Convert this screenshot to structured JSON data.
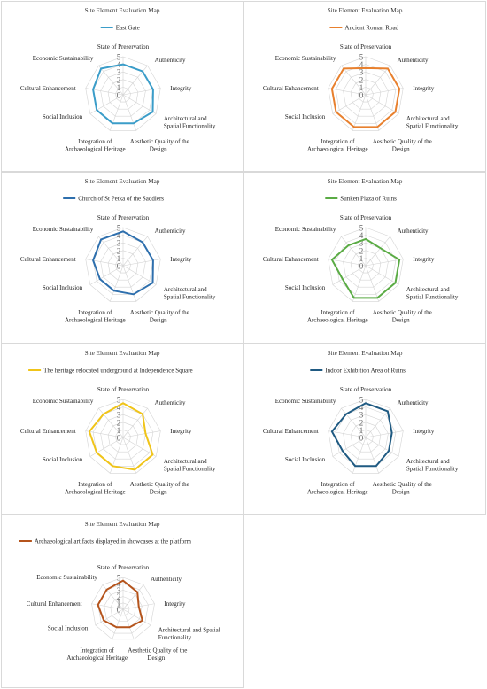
{
  "figure_title": "Site Element Evaluation Map",
  "axes": [
    "State of Preservation",
    "Authenticity",
    "Integrity",
    "Architectural and Spatial Functionality",
    "Aesthetic Quality of the Design",
    "Integration of Archaeological Heritage",
    "Social Inclusion",
    "Cultural Enhancement",
    "Economic Sustainability"
  ],
  "chart_data": [
    {
      "type": "radar",
      "title": "Site Element Evaluation Map",
      "axes": [
        "State of Preservation",
        "Authenticity",
        "Integrity",
        "Architectural and Spatial Functionality",
        "Aesthetic Quality of the Design",
        "Integration of Archaeological Heritage",
        "Social Inclusion",
        "Cultural Enhancement",
        "Economic Sustainability"
      ],
      "rlim": [
        0,
        5
      ],
      "ticks": [
        "0",
        "1",
        "2",
        "3",
        "4",
        "5"
      ],
      "grid": true,
      "legend": "top",
      "series": [
        {
          "name": "East Gate",
          "color": "#3b9dc9",
          "values": [
            4,
            4,
            4,
            4.5,
            4,
            4,
            4,
            4,
            4.5
          ]
        }
      ]
    },
    {
      "type": "radar",
      "title": "Site Element Evaluation Map",
      "axes": [
        "State of Preservation",
        "Authenticity",
        "Integrity",
        "Architectural and Spatial Functionality",
        "Aesthetic Quality of the Design",
        "Integration of Archaeological Heritage",
        "Social Inclusion",
        "Cultural Enhancement",
        "Economic Sustainability"
      ],
      "rlim": [
        0,
        5
      ],
      "ticks": [
        "0",
        "1",
        "2",
        "3",
        "4",
        "5"
      ],
      "grid": true,
      "legend": "top",
      "series": [
        {
          "name": "Ancient Roman Road",
          "color": "#e8802e",
          "values": [
            3.5,
            4.5,
            4.5,
            4.5,
            4.5,
            4.5,
            4.5,
            4.5,
            4.5
          ]
        }
      ]
    },
    {
      "type": "radar",
      "title": "Site Element Evaluation Map",
      "axes": [
        "State of Preservation",
        "Authenticity",
        "Integrity",
        "Architectural and Spatial Functionality",
        "Aesthetic Quality of the Design",
        "Integration of Archaeological Heritage",
        "Social Inclusion",
        "Cultural Enhancement",
        "Economic Sustainability"
      ],
      "rlim": [
        0,
        5
      ],
      "ticks": [
        "0",
        "1",
        "2",
        "3",
        "4",
        "5"
      ],
      "grid": true,
      "legend": "top",
      "series": [
        {
          "name": "Church of St Petka of the Saddlers",
          "color": "#2e6fad",
          "values": [
            4.5,
            4,
            4,
            4.5,
            4,
            3.5,
            3.5,
            4,
            4.5
          ]
        }
      ]
    },
    {
      "type": "radar",
      "title": "Site Element Evaluation Map",
      "axes": [
        "State of Preservation",
        "Authenticity",
        "Integrity",
        "Architectural and Spatial Functionality",
        "Aesthetic Quality of the Design",
        "Integration of Archaeological Heritage",
        "Social Inclusion",
        "Cultural Enhancement",
        "Economic Sustainability"
      ],
      "rlim": [
        0,
        5
      ],
      "ticks": [
        "0",
        "1",
        "2",
        "3",
        "4",
        "5"
      ],
      "grid": true,
      "legend": "top",
      "series": [
        {
          "name": "Sunken Plaza of Ruins",
          "color": "#5aab44",
          "values": [
            3.5,
            3,
            4.5,
            4.5,
            4.5,
            4.5,
            3.5,
            4.5,
            3.5
          ]
        }
      ]
    },
    {
      "type": "radar",
      "title": "Site Element Evaluation Map",
      "axes": [
        "State of Preservation",
        "Authenticity",
        "Integrity",
        "Architectural and Spatial Functionality",
        "Aesthetic Quality of the Design",
        "Integration of Archaeological Heritage",
        "Social Inclusion",
        "Cultural Enhancement",
        "Economic Sustainability"
      ],
      "rlim": [
        0,
        5
      ],
      "ticks": [
        "0",
        "1",
        "2",
        "3",
        "4",
        "5"
      ],
      "grid": true,
      "legend": "top",
      "series": [
        {
          "name": "The heritage relocated underground at Independence Square",
          "color": "#f0c419",
          "values": [
            4.5,
            4,
            3,
            4.5,
            4.5,
            4,
            4,
            4.5,
            4
          ]
        }
      ]
    },
    {
      "type": "radar",
      "title": "Site Element Evaluation Map",
      "axes": [
        "State of Preservation",
        "Authenticity",
        "Integrity",
        "Architectural and Spatial Functionality",
        "Aesthetic Quality of the Design",
        "Integration of Archaeological Heritage",
        "Social Inclusion",
        "Cultural Enhancement",
        "Economic Sustainability"
      ],
      "rlim": [
        0,
        5
      ],
      "ticks": [
        "0",
        "1",
        "2",
        "3",
        "4",
        "5"
      ],
      "grid": true,
      "legend": "top",
      "series": [
        {
          "name": "Indoor Exhibition Area of Ruins",
          "color": "#1f5a82",
          "values": [
            4.5,
            4.5,
            3.5,
            3.5,
            4,
            4,
            3.5,
            4.5,
            4
          ]
        }
      ]
    },
    {
      "type": "radar",
      "title": "Site Element Evaluation Map",
      "axes": [
        "State of Preservation",
        "Authenticity",
        "Integrity",
        "Architectural and Spatial Functionality",
        "Aesthetic Quality of the Design",
        "Integration of Archaeological Heritage",
        "Social Inclusion",
        "Cultural Enhancement",
        "Economic Sustainability"
      ],
      "rlim": [
        0,
        5
      ],
      "ticks": [
        "0",
        "1",
        "2",
        "3",
        "4",
        "5"
      ],
      "grid": true,
      "legend": "top",
      "series": [
        {
          "name": "Archaeological artifacts displayed in showcases at the platform",
          "color": "#b5541c",
          "values": [
            4.5,
            3.5,
            2.5,
            3.5,
            3,
            3,
            3.5,
            4,
            4
          ]
        }
      ]
    }
  ]
}
